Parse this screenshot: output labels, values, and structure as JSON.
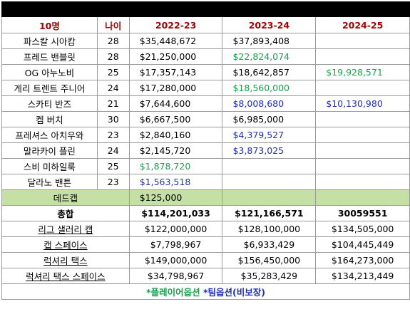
{
  "header": {
    "col_name": "10명",
    "col_age": "나이",
    "seasons": [
      "2022-23",
      "2023-24",
      "2024-25"
    ]
  },
  "players": [
    {
      "name": "파스칼 시아캄",
      "age": "28",
      "s1": "$35,448,672",
      "s1c": "",
      "s2": "$37,893,408",
      "s2c": "",
      "s3": "",
      "s3c": ""
    },
    {
      "name": "프레드 밴블릿",
      "age": "28",
      "s1": "$21,250,000",
      "s1c": "",
      "s2": "$22,824,074",
      "s2c": "green",
      "s3": "",
      "s3c": ""
    },
    {
      "name": "OG 아누노비",
      "age": "25",
      "s1": "$17,357,143",
      "s1c": "",
      "s2": "$18,642,857",
      "s2c": "",
      "s3": "$19,928,571",
      "s3c": "green"
    },
    {
      "name": "게리 트렌트 주니어",
      "age": "24",
      "s1": "$17,280,000",
      "s1c": "",
      "s2": "$18,560,000",
      "s2c": "green",
      "s3": "",
      "s3c": ""
    },
    {
      "name": "스카티 반즈",
      "age": "21",
      "s1": "$7,644,600",
      "s1c": "",
      "s2": "$8,008,680",
      "s2c": "blue",
      "s3": "$10,130,980",
      "s3c": "blue"
    },
    {
      "name": "켐 버치",
      "age": "30",
      "s1": "$6,667,500",
      "s1c": "",
      "s2": "$6,985,000",
      "s2c": "",
      "s3": "",
      "s3c": ""
    },
    {
      "name": "프레셔스 아치우와",
      "age": "23",
      "s1": "$2,840,160",
      "s1c": "",
      "s2": "$4,379,527",
      "s2c": "blue",
      "s3": "",
      "s3c": ""
    },
    {
      "name": "말라카이 플린",
      "age": "24",
      "s1": "$2,145,720",
      "s1c": "",
      "s2": "$3,873,025",
      "s2c": "blue",
      "s3": "",
      "s3c": ""
    },
    {
      "name": "스비 미하일룩",
      "age": "25",
      "s1": "$1,878,720",
      "s1c": "green",
      "s2": "",
      "s2c": "",
      "s3": "",
      "s3c": ""
    },
    {
      "name": "달라노 밴튼",
      "age": "23",
      "s1": "$1,563,518",
      "s1c": "blue",
      "s2": "",
      "s2c": "",
      "s3": "",
      "s3c": ""
    }
  ],
  "deadcap": {
    "label": "데드캡",
    "s1": "$125,000"
  },
  "total": {
    "label": "총합",
    "s1": "$114,201,033",
    "s2": "$121,166,571",
    "s3": "30059551"
  },
  "summary": [
    {
      "label": "리그 샐러리 캡",
      "s1": "$122,000,000",
      "s2": "$128,100,000",
      "s3": "$134,505,000"
    },
    {
      "label": "캡 스페이스",
      "s1": "$7,798,967",
      "s2": "$6,933,429",
      "s3": "$104,445,449"
    },
    {
      "label": "럭셔리 택스",
      "s1": "$149,000,000",
      "s2": "$156,450,000",
      "s3": "$164,273,000"
    },
    {
      "label": "럭셔리 택스 스페이스",
      "s1": "$34,798,967",
      "s2": "$35,283,429",
      "s3": "$134,213,449"
    }
  ],
  "footer": {
    "player_option": "*플레이어옵션",
    "team_option": "*팀옵션(비보장)"
  }
}
